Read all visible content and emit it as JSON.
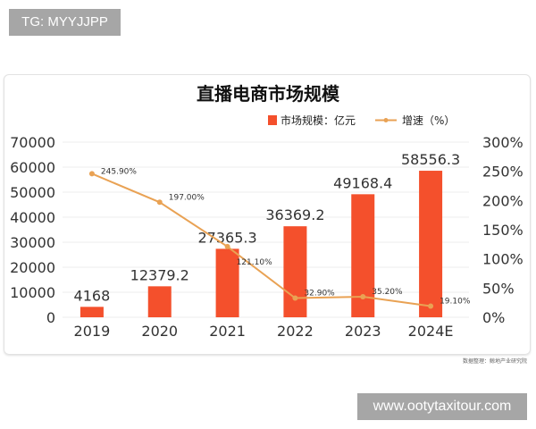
{
  "watermark_top": "TG: MYYJJPP",
  "watermark_bottom": "www.ootytaxitour.com",
  "source": "数据整理：鲸地产业研究院",
  "chart_data": {
    "type": "bar+line",
    "title": "直播电商市场规模",
    "categories": [
      "2019",
      "2020",
      "2021",
      "2022",
      "2023",
      "2024E"
    ],
    "series": [
      {
        "name": "市场规模：亿元",
        "type": "bar",
        "axis": "left",
        "color": "#f4502c",
        "values": [
          4168,
          12379.2,
          27365.3,
          36369.2,
          49168.4,
          58556.3
        ],
        "labels": [
          "4168",
          "12379.2",
          "27365.3",
          "36369.2",
          "49168.4",
          "58556.3"
        ]
      },
      {
        "name": "增速（%）",
        "type": "line",
        "axis": "right",
        "color": "#e9a254",
        "values": [
          245.9,
          197.0,
          121.1,
          32.9,
          35.2,
          19.1
        ],
        "labels": [
          "245.90%",
          "197.00%",
          "121.10%",
          "32.90%",
          "35.20%",
          "19.10%"
        ]
      }
    ],
    "left_axis": {
      "ylim": [
        0,
        70000
      ],
      "ticks": [
        "0",
        "10000",
        "20000",
        "30000",
        "40000",
        "50000",
        "60000",
        "70000"
      ]
    },
    "right_axis": {
      "ylim": [
        0,
        300
      ],
      "ticks": [
        "0%",
        "50%",
        "100%",
        "150%",
        "200%",
        "250%",
        "300%"
      ]
    },
    "grid": true,
    "legend": "top-right"
  }
}
